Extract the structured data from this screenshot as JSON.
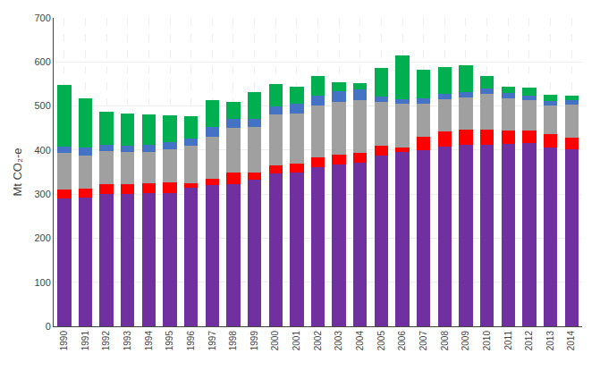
{
  "chart_data": {
    "type": "bar",
    "stacked": true,
    "grid": true,
    "ylabel": "Mt CO₂-e",
    "categories": [
      "1990",
      "1991",
      "1992",
      "1993",
      "1994",
      "1995",
      "1996",
      "1997",
      "1998",
      "1999",
      "2000",
      "2001",
      "2002",
      "2003",
      "2004",
      "2005",
      "2006",
      "2007",
      "2008",
      "2009",
      "2010",
      "2011",
      "2012",
      "2013",
      "2014"
    ],
    "series": [
      {
        "color": "#7030a0",
        "values": [
          291,
          293,
          300,
          301,
          302,
          302,
          314,
          320,
          322,
          333,
          347,
          350,
          362,
          368,
          371,
          388,
          395,
          400,
          408,
          412,
          412,
          413,
          415,
          406,
          401
        ]
      },
      {
        "color": "#ff0000",
        "values": [
          20,
          20,
          22,
          22,
          22,
          25,
          10,
          15,
          28,
          15,
          18,
          20,
          22,
          22,
          22,
          22,
          10,
          30,
          35,
          35,
          35,
          32,
          30,
          30,
          28
        ]
      },
      {
        "color": "#a0a0a0",
        "values": [
          82,
          75,
          75,
          72,
          72,
          75,
          85,
          95,
          100,
          105,
          115,
          112,
          118,
          120,
          120,
          100,
          100,
          75,
          72,
          72,
          80,
          72,
          68,
          65,
          75
        ]
      },
      {
        "color": "#4472c4",
        "values": [
          15,
          18,
          15,
          15,
          15,
          16,
          17,
          22,
          20,
          18,
          20,
          24,
          22,
          24,
          24,
          12,
          10,
          12,
          12,
          12,
          12,
          12,
          10,
          10,
          10
        ]
      },
      {
        "color": "#00b050",
        "values": [
          140,
          112,
          75,
          72,
          70,
          60,
          50,
          62,
          40,
          60,
          50,
          38,
          45,
          20,
          15,
          65,
          100,
          65,
          62,
          62,
          30,
          15,
          18,
          15,
          10
        ]
      }
    ],
    "ylim": [
      0,
      700
    ],
    "yticks": [
      0,
      100,
      200,
      300,
      400,
      500,
      600,
      700
    ]
  }
}
